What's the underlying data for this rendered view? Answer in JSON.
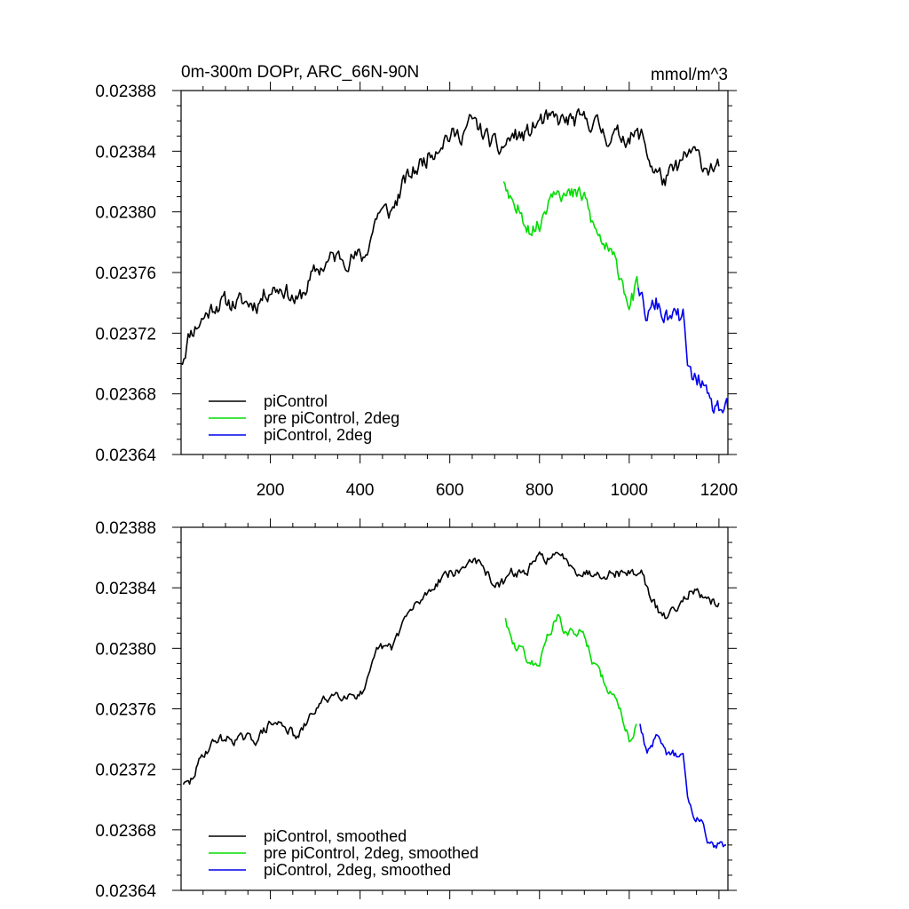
{
  "chart_data": [
    {
      "type": "line",
      "title_left": "0m-300m DOPr, ARC_66N-90N",
      "title_right": "mmol/m^3",
      "xlabel": "",
      "ylabel": "",
      "xlim": [
        1,
        1220
      ],
      "ylim": [
        0.02364,
        0.02388
      ],
      "xticks": [
        200,
        400,
        600,
        800,
        1000,
        1200
      ],
      "xtick_labels": [
        "200",
        "400",
        "600",
        "800",
        "1000",
        "1200"
      ],
      "yticks": [
        0.02364,
        0.02368,
        0.02372,
        0.02376,
        0.0238,
        0.02384,
        0.02388
      ],
      "ytick_labels": [
        "0.02364",
        "0.02368",
        "0.02372",
        "0.02376",
        "0.02380",
        "0.02384",
        "0.02388"
      ],
      "grid": false,
      "legend_position": "bottom-left",
      "noise": 6.5e-06,
      "seed": 11,
      "series": [
        {
          "name": "piControl",
          "color": "#000000",
          "x": [
            1,
            20,
            50,
            80,
            110,
            140,
            170,
            200,
            230,
            260,
            300,
            340,
            380,
            410,
            440,
            470,
            500,
            530,
            560,
            590,
            620,
            650,
            680,
            710,
            740,
            770,
            800,
            830,
            860,
            890,
            920,
            950,
            980,
            1010,
            1030,
            1050,
            1080,
            1110,
            1140,
            1170,
            1200
          ],
          "y": [
            0.0237,
            0.02372,
            0.02373,
            0.02374,
            0.02374,
            0.02374,
            0.02374,
            0.02375,
            0.02375,
            0.02374,
            0.02376,
            0.02377,
            0.02377,
            0.02377,
            0.0238,
            0.0238,
            0.02382,
            0.02383,
            0.02384,
            0.02385,
            0.02385,
            0.02386,
            0.02385,
            0.02384,
            0.02385,
            0.02385,
            0.02386,
            0.02386,
            0.02386,
            0.02386,
            0.02386,
            0.02385,
            0.02385,
            0.02385,
            0.02385,
            0.02383,
            0.02382,
            0.02383,
            0.02384,
            0.02383,
            0.02383
          ]
        },
        {
          "name": "pre piControl, 2deg",
          "color": "#00dd00",
          "x": [
            720,
            740,
            760,
            780,
            800,
            820,
            840,
            860,
            880,
            900,
            920,
            940,
            960,
            980,
            1000,
            1020
          ],
          "y": [
            0.02382,
            0.0238,
            0.0238,
            0.02379,
            0.02379,
            0.02381,
            0.02382,
            0.02381,
            0.02381,
            0.02381,
            0.02379,
            0.02378,
            0.02377,
            0.02376,
            0.02374,
            0.02375
          ]
        },
        {
          "name": "piControl, 2deg",
          "color": "#0000ee",
          "x": [
            1020,
            1040,
            1060,
            1080,
            1100,
            1120,
            1130,
            1140,
            1160,
            1180,
            1200,
            1220
          ],
          "y": [
            0.02375,
            0.02373,
            0.02374,
            0.02373,
            0.02373,
            0.02373,
            0.0237,
            0.02369,
            0.02369,
            0.02367,
            0.02367,
            0.02367
          ]
        }
      ]
    },
    {
      "type": "line",
      "title_left": "",
      "title_right": "",
      "xlabel": "",
      "ylabel": "",
      "xlim": [
        1,
        1220
      ],
      "ylim": [
        0.02364,
        0.02388
      ],
      "xticks": [
        200,
        400,
        600,
        800,
        1000,
        1200
      ],
      "xtick_labels": [],
      "yticks": [
        0.02364,
        0.02368,
        0.02372,
        0.02376,
        0.0238,
        0.02384,
        0.02388
      ],
      "ytick_labels": [
        "0.02364",
        "0.02368",
        "0.02372",
        "0.02376",
        "0.02380",
        "0.02384",
        "0.02388"
      ],
      "grid": false,
      "legend_position": "bottom-left",
      "noise": 3.5e-06,
      "seed": 29,
      "series": [
        {
          "name": "piControl, smoothed",
          "color": "#000000",
          "x": [
            6,
            20,
            50,
            80,
            110,
            140,
            170,
            200,
            230,
            260,
            300,
            340,
            380,
            410,
            440,
            470,
            500,
            530,
            560,
            590,
            620,
            650,
            680,
            710,
            740,
            770,
            800,
            830,
            860,
            890,
            920,
            950,
            980,
            1010,
            1030,
            1050,
            1080,
            1110,
            1140,
            1170,
            1200
          ],
          "y": [
            0.02371,
            0.02371,
            0.02373,
            0.02374,
            0.02374,
            0.02374,
            0.02374,
            0.02375,
            0.02375,
            0.02374,
            0.02376,
            0.02377,
            0.02377,
            0.02377,
            0.0238,
            0.0238,
            0.02382,
            0.02383,
            0.02384,
            0.02385,
            0.02385,
            0.02386,
            0.02385,
            0.02384,
            0.02385,
            0.02385,
            0.02386,
            0.02386,
            0.02386,
            0.02385,
            0.02385,
            0.02385,
            0.02385,
            0.02385,
            0.02385,
            0.02383,
            0.02382,
            0.02383,
            0.02384,
            0.02383,
            0.02383
          ]
        },
        {
          "name": "pre piControl, 2deg, smoothed",
          "color": "#00dd00",
          "x": [
            724,
            740,
            760,
            780,
            800,
            820,
            840,
            860,
            880,
            900,
            920,
            940,
            960,
            980,
            1000,
            1016
          ],
          "y": [
            0.02382,
            0.0238,
            0.0238,
            0.02379,
            0.02379,
            0.02381,
            0.02382,
            0.02381,
            0.02381,
            0.02381,
            0.02379,
            0.02378,
            0.02377,
            0.02376,
            0.02374,
            0.02375
          ]
        },
        {
          "name": "piControl, 2deg, smoothed",
          "color": "#0000ee",
          "x": [
            1024,
            1040,
            1060,
            1080,
            1100,
            1120,
            1130,
            1140,
            1160,
            1180,
            1200,
            1216
          ],
          "y": [
            0.02375,
            0.02373,
            0.02374,
            0.02373,
            0.02373,
            0.02373,
            0.0237,
            0.02369,
            0.02369,
            0.02367,
            0.02367,
            0.02367
          ]
        }
      ]
    }
  ]
}
